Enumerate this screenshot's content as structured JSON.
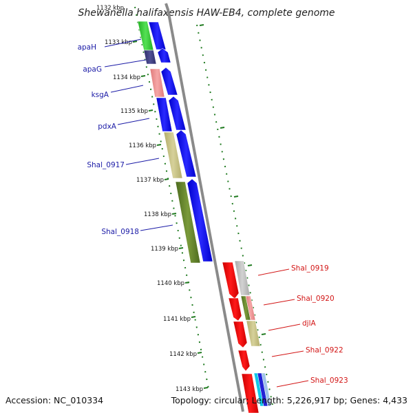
{
  "title": "Shewanella halifaxensis HAW-EB4, complete genome",
  "accession_text": "Accession: NC_010334",
  "topology_text": "Topology: circular; Length: 5,226,917 bp; Genes: 4,433",
  "colors": {
    "strand_gray": "#8a8a8a",
    "tick_green": "#1f7a1f",
    "label_left": "#1a1aa6",
    "label_right": "#d21414"
  },
  "kbp_ticks": [
    "1132 kbp",
    "1133 kbp",
    "1134 kbp",
    "1135 kbp",
    "1136 kbp",
    "1137 kbp",
    "1138 kbp",
    "1139 kbp",
    "1140 kbp",
    "1141 kbp",
    "1142 kbp",
    "1143 kbp"
  ],
  "left_genes": [
    "apaH",
    "apaG",
    "ksgA",
    "pdxA",
    "Shal_0917",
    "Shal_0918"
  ],
  "right_genes": [
    "Shal_0919",
    "Shal_0920",
    "djlA",
    "Shal_0922",
    "Shal_0923"
  ]
}
